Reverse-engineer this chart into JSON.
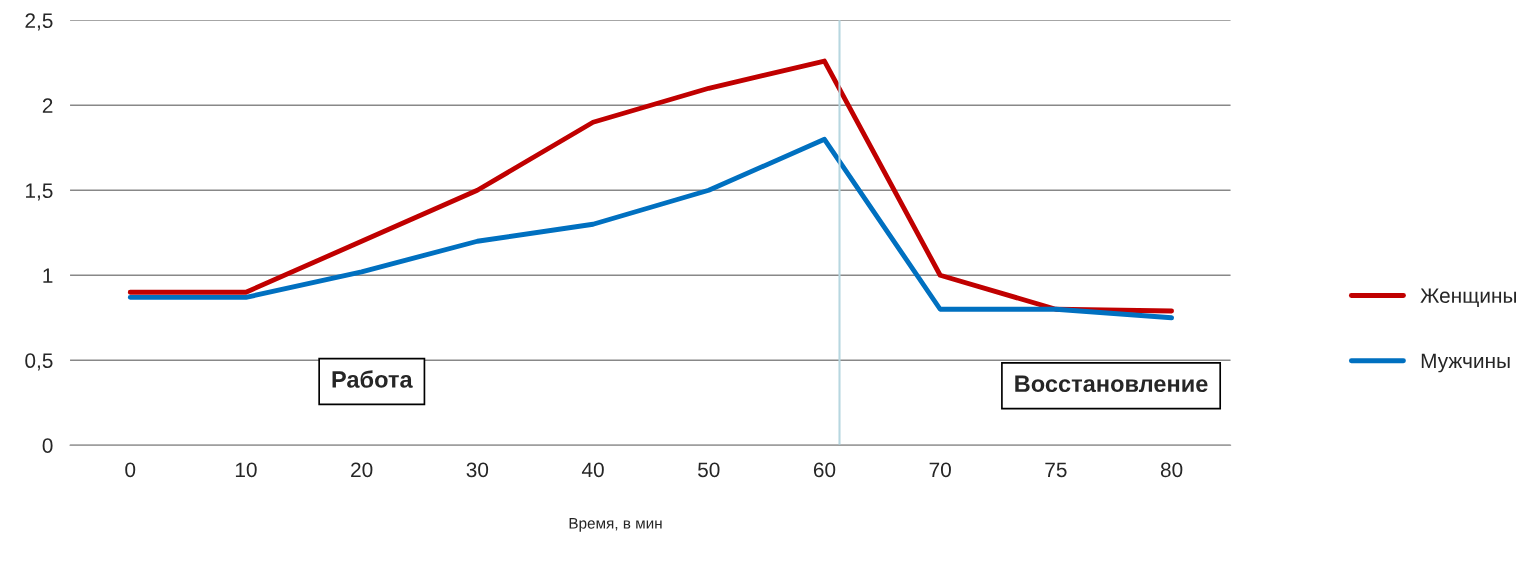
{
  "chart_data": {
    "type": "line",
    "xlabel": "Время, в мин",
    "categories": [
      "0",
      "10",
      "20",
      "30",
      "40",
      "50",
      "60",
      "70",
      "75",
      "80"
    ],
    "series": [
      {
        "name": "Женщины",
        "color": "#c00000",
        "values": [
          0.9,
          0.9,
          1.2,
          1.5,
          1.9,
          2.1,
          2.26,
          1.0,
          0.8,
          0.79
        ]
      },
      {
        "name": "Мужчины",
        "color": "#0070c0",
        "values": [
          0.87,
          0.87,
          1.02,
          1.2,
          1.3,
          1.5,
          1.8,
          0.8,
          0.8,
          0.75
        ]
      }
    ],
    "ylim": [
      0,
      2.5
    ],
    "yticks": [
      0,
      {
        "value": 0.5,
        "label": "0,5"
      },
      1,
      {
        "value": 1.5,
        "label": "1,5"
      },
      2,
      {
        "value": 2.5,
        "label": "2,5"
      }
    ],
    "ref_lines": [
      {
        "axis": "x",
        "value": "60",
        "color": "#b7d7e0"
      }
    ],
    "annotations": [
      "Работа",
      "Восстановление"
    ],
    "grid": "y",
    "legend": "right",
    "marker": "none",
    "line_style": "solid"
  }
}
